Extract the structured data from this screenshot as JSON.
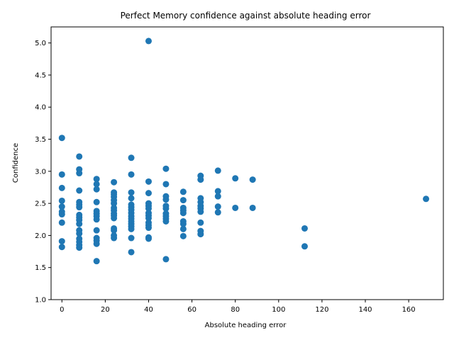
{
  "chart_data": {
    "type": "scatter",
    "title": "Perfect Memory confidence against absolute heading error",
    "xlabel": "Absolute heading error",
    "ylabel": "Confidence",
    "xlim": [
      -5,
      176
    ],
    "ylim": [
      1.0,
      5.25
    ],
    "xticks": [
      0,
      20,
      40,
      60,
      80,
      100,
      120,
      140,
      160
    ],
    "yticks": [
      1.0,
      1.5,
      2.0,
      2.5,
      3.0,
      3.5,
      4.0,
      4.5,
      5.0
    ],
    "xtick_labels": [
      "0",
      "20",
      "40",
      "60",
      "80",
      "100",
      "120",
      "140",
      "160"
    ],
    "ytick_labels": [
      "1.0",
      "1.5",
      "2.0",
      "2.5",
      "3.0",
      "3.5",
      "4.0",
      "4.5",
      "5.0"
    ],
    "grid": false,
    "marker_color": "#1f77b4",
    "points": [
      [
        0,
        3.52
      ],
      [
        0,
        2.95
      ],
      [
        0,
        2.74
      ],
      [
        0,
        2.54
      ],
      [
        0,
        2.45
      ],
      [
        0,
        2.37
      ],
      [
        0,
        2.33
      ],
      [
        0,
        2.2
      ],
      [
        0,
        1.91
      ],
      [
        0,
        1.82
      ],
      [
        8,
        3.23
      ],
      [
        8,
        3.03
      ],
      [
        8,
        2.97
      ],
      [
        8,
        2.7
      ],
      [
        8,
        2.52
      ],
      [
        8,
        2.48
      ],
      [
        8,
        2.44
      ],
      [
        8,
        2.32
      ],
      [
        8,
        2.28
      ],
      [
        8,
        2.24
      ],
      [
        8,
        2.18
      ],
      [
        8,
        2.08
      ],
      [
        8,
        2.03
      ],
      [
        8,
        1.95
      ],
      [
        8,
        1.9
      ],
      [
        8,
        1.85
      ],
      [
        8,
        1.81
      ],
      [
        16,
        2.88
      ],
      [
        16,
        2.8
      ],
      [
        16,
        2.72
      ],
      [
        16,
        2.52
      ],
      [
        16,
        2.38
      ],
      [
        16,
        2.34
      ],
      [
        16,
        2.3
      ],
      [
        16,
        2.25
      ],
      [
        16,
        2.08
      ],
      [
        16,
        1.96
      ],
      [
        16,
        1.92
      ],
      [
        16,
        1.87
      ],
      [
        16,
        1.6
      ],
      [
        24,
        2.83
      ],
      [
        24,
        2.67
      ],
      [
        24,
        2.64
      ],
      [
        24,
        2.6
      ],
      [
        24,
        2.55
      ],
      [
        24,
        2.5
      ],
      [
        24,
        2.43
      ],
      [
        24,
        2.39
      ],
      [
        24,
        2.34
      ],
      [
        24,
        2.31
      ],
      [
        24,
        2.27
      ],
      [
        24,
        2.11
      ],
      [
        24,
        2.08
      ],
      [
        24,
        2.0
      ],
      [
        24,
        1.96
      ],
      [
        32,
        3.21
      ],
      [
        32,
        2.95
      ],
      [
        32,
        2.67
      ],
      [
        32,
        2.58
      ],
      [
        32,
        2.48
      ],
      [
        32,
        2.44
      ],
      [
        32,
        2.4
      ],
      [
        32,
        2.35
      ],
      [
        32,
        2.3
      ],
      [
        32,
        2.26
      ],
      [
        32,
        2.22
      ],
      [
        32,
        2.18
      ],
      [
        32,
        2.14
      ],
      [
        32,
        2.1
      ],
      [
        32,
        1.96
      ],
      [
        32,
        1.74
      ],
      [
        40,
        5.03
      ],
      [
        40,
        2.84
      ],
      [
        40,
        2.66
      ],
      [
        40,
        2.5
      ],
      [
        40,
        2.46
      ],
      [
        40,
        2.42
      ],
      [
        40,
        2.35
      ],
      [
        40,
        2.31
      ],
      [
        40,
        2.27
      ],
      [
        40,
        2.2
      ],
      [
        40,
        2.16
      ],
      [
        40,
        2.12
      ],
      [
        40,
        1.97
      ],
      [
        40,
        1.95
      ],
      [
        48,
        3.04
      ],
      [
        48,
        2.8
      ],
      [
        48,
        2.61
      ],
      [
        48,
        2.56
      ],
      [
        48,
        2.46
      ],
      [
        48,
        2.42
      ],
      [
        48,
        2.34
      ],
      [
        48,
        2.3
      ],
      [
        48,
        2.26
      ],
      [
        48,
        2.22
      ],
      [
        48,
        1.63
      ],
      [
        56,
        2.68
      ],
      [
        56,
        2.55
      ],
      [
        56,
        2.43
      ],
      [
        56,
        2.39
      ],
      [
        56,
        2.35
      ],
      [
        56,
        2.22
      ],
      [
        56,
        2.18
      ],
      [
        56,
        2.1
      ],
      [
        56,
        1.99
      ],
      [
        64,
        2.93
      ],
      [
        64,
        2.87
      ],
      [
        64,
        2.58
      ],
      [
        64,
        2.52
      ],
      [
        64,
        2.46
      ],
      [
        64,
        2.42
      ],
      [
        64,
        2.37
      ],
      [
        64,
        2.2
      ],
      [
        64,
        2.07
      ],
      [
        64,
        2.02
      ],
      [
        72,
        3.01
      ],
      [
        72,
        2.69
      ],
      [
        72,
        2.61
      ],
      [
        72,
        2.45
      ],
      [
        72,
        2.36
      ],
      [
        80,
        2.89
      ],
      [
        80,
        2.43
      ],
      [
        88,
        2.87
      ],
      [
        88,
        2.43
      ],
      [
        112,
        2.11
      ],
      [
        112,
        1.83
      ],
      [
        168,
        2.57
      ]
    ]
  }
}
